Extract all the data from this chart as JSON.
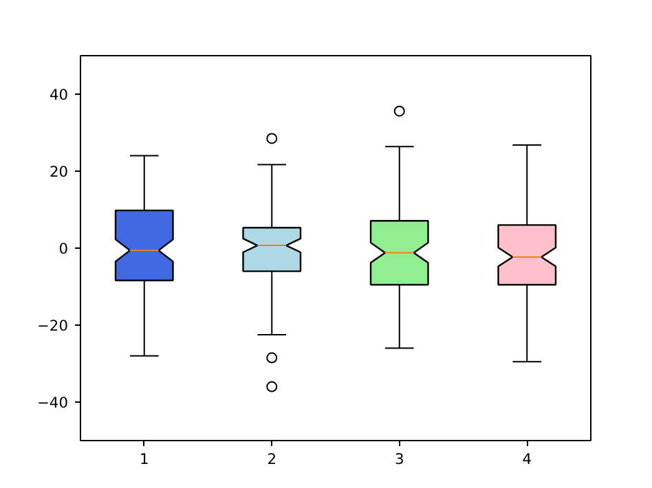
{
  "chart_data": {
    "type": "box",
    "categories": [
      "1",
      "2",
      "3",
      "4"
    ],
    "colors": [
      "#4169e1",
      "#add8e6",
      "#90ee90",
      "#ffc0cb"
    ],
    "boxes": [
      {
        "low": -28,
        "q1": -8.4,
        "median": -0.6,
        "q3": 9.8,
        "high": 24
      },
      {
        "low": -22.5,
        "q1": -6,
        "median": 0.7,
        "q3": 5.3,
        "high": 21.7,
        "outliers": [
          28.5,
          -28.5,
          -36
        ]
      },
      {
        "low": -26,
        "q1": -9.5,
        "median": -1.2,
        "q3": 7.1,
        "high": 26.4,
        "outliers": [
          35.6
        ]
      },
      {
        "low": -29.5,
        "q1": -9.5,
        "median": -2.3,
        "q3": 6,
        "high": 26.8
      }
    ],
    "ylim": [
      -50,
      50
    ],
    "yticks": [
      -40,
      -20,
      0,
      20,
      40
    ],
    "grid": false
  }
}
